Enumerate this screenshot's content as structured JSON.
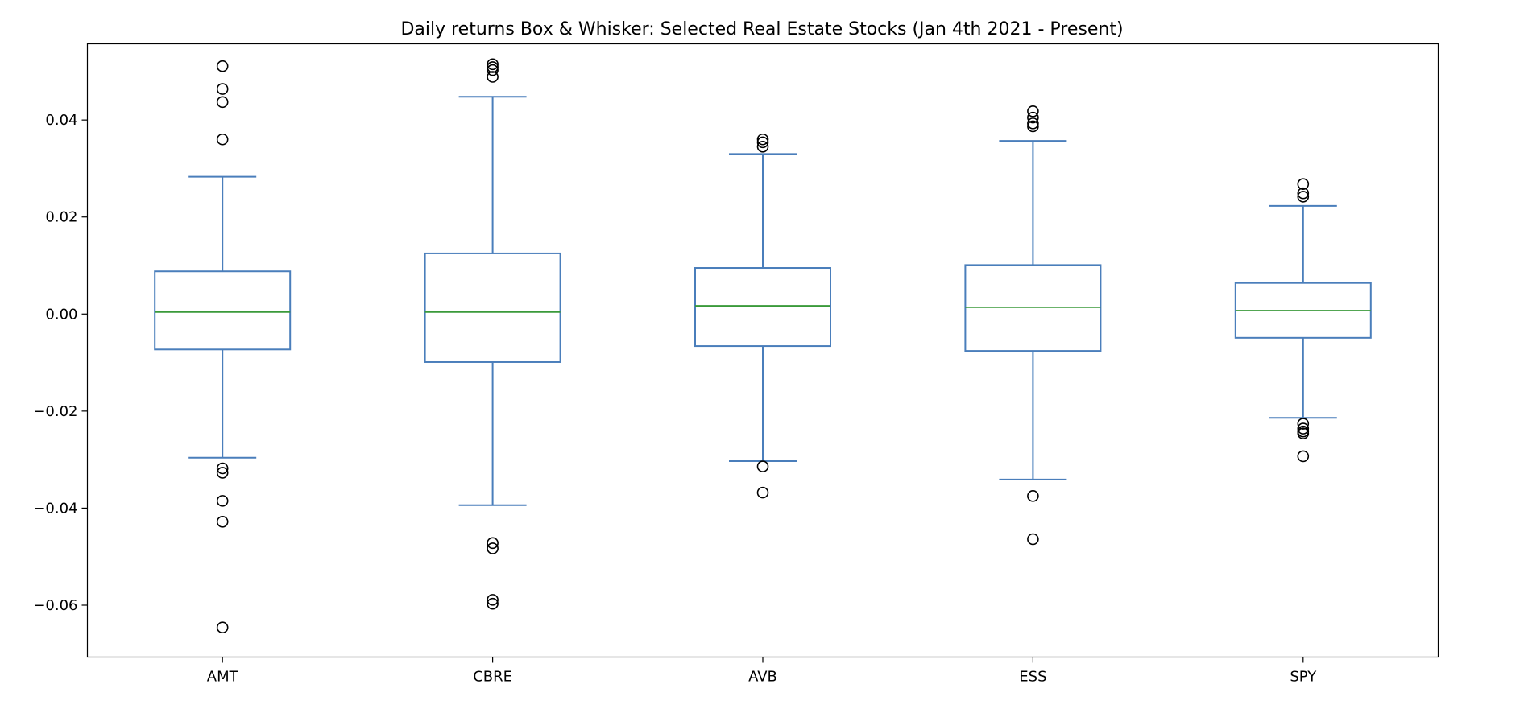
{
  "chart_data": {
    "type": "box",
    "title": "Daily returns Box & Whisker: Selected Real Estate Stocks (Jan 4th 2021 - Present)",
    "xlabel": "",
    "ylabel": "",
    "ylim": [
      -0.0707,
      0.0557
    ],
    "yticks": [
      0.04,
      0.02,
      0.0,
      -0.02,
      -0.04,
      -0.06
    ],
    "ytick_labels": [
      "0.04",
      "0.02",
      "0.00",
      "−0.02",
      "−0.04",
      "−0.06"
    ],
    "grid": false,
    "colors": {
      "box": "#4a7ebb",
      "median": "#3a9a3a",
      "flier": "#000000"
    },
    "categories": [
      "AMT",
      "CBRE",
      "AVB",
      "ESS",
      "SPY"
    ],
    "series": [
      {
        "name": "AMT",
        "whisker_low": -0.0296,
        "q1": -0.0073,
        "median": 0.0004,
        "q3": 0.0088,
        "whisker_high": 0.0283,
        "fliers": [
          0.0511,
          0.0464,
          0.0437,
          0.036,
          -0.0318,
          -0.0327,
          -0.0385,
          -0.0428,
          -0.0646
        ]
      },
      {
        "name": "CBRE",
        "whisker_low": -0.0394,
        "q1": -0.0099,
        "median": 0.0004,
        "q3": 0.0125,
        "whisker_high": 0.0448,
        "fliers": [
          0.0515,
          0.0509,
          0.0503,
          0.0489,
          -0.0472,
          -0.0483,
          -0.0589,
          -0.0597
        ]
      },
      {
        "name": "AVB",
        "whisker_low": -0.0303,
        "q1": -0.0066,
        "median": 0.0017,
        "q3": 0.0095,
        "whisker_high": 0.033,
        "fliers": [
          0.036,
          0.0354,
          0.0345,
          -0.0314,
          -0.0368
        ]
      },
      {
        "name": "ESS",
        "whisker_low": -0.0341,
        "q1": -0.0076,
        "median": 0.0014,
        "q3": 0.0101,
        "whisker_high": 0.0357,
        "fliers": [
          0.0418,
          0.0405,
          0.0393,
          0.0387,
          -0.0375,
          -0.0464
        ]
      },
      {
        "name": "SPY",
        "whisker_low": -0.0214,
        "q1": -0.0049,
        "median": 0.0007,
        "q3": 0.0064,
        "whisker_high": 0.0223,
        "fliers": [
          0.0268,
          0.0249,
          0.0242,
          -0.0226,
          -0.0236,
          -0.0242,
          -0.0246,
          -0.0293
        ]
      }
    ]
  }
}
